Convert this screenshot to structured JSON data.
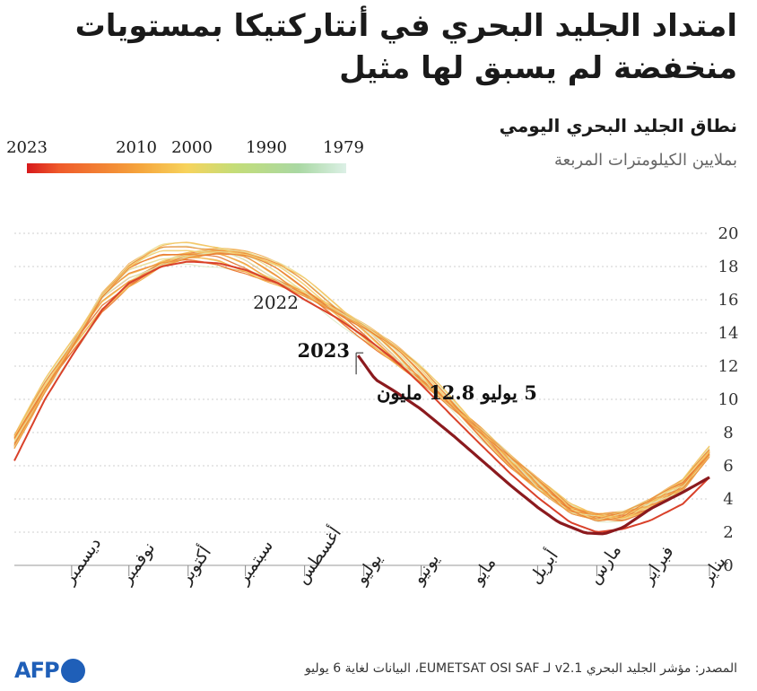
{
  "title": "امتداد الجليد البحري في أنتاركتيكا بمستويات منخفضة لم يسبق لها مثيل",
  "subtitle": "نطاق الجليد البحري اليومي",
  "unit": "بملايين الكيلومترات المربعة",
  "legend_years": [
    "2023",
    "2010",
    "2000",
    "1990",
    "1979"
  ],
  "source": "المصدر: مؤشر الجليد البحري v2.1 لـ EUMETSAT OSI SAF، البيانات لغاية 6 يوليو",
  "logo_text": "AFP",
  "colors": {
    "y2023": "#8b1a1e",
    "y2022": "#d9412a",
    "recent": "#ef7a2b",
    "mid": "#f5c248",
    "old": "#c9dc92"
  },
  "chart_data": {
    "type": "line",
    "x_direction": "right-to-left",
    "months": [
      "يناير",
      "فبراير",
      "مارس",
      "أبريل",
      "مايو",
      "يونيو",
      "يوليو",
      "أغسطس",
      "سبتمبر",
      "أكتوبر",
      "نوفمبر",
      "ديسمبر"
    ],
    "ylim": [
      0,
      20
    ],
    "yticks": [
      0,
      2,
      4,
      6,
      8,
      10,
      12,
      14,
      16,
      18,
      20
    ],
    "climatology": {
      "days": [
        1,
        15,
        32,
        46,
        60,
        74,
        91,
        105,
        121,
        135,
        152,
        166,
        182,
        196,
        213,
        227,
        244,
        258,
        274,
        288,
        305,
        319,
        335,
        349,
        365
      ],
      "values": [
        6.8,
        4.8,
        3.7,
        3.0,
        2.9,
        3.4,
        4.9,
        6.3,
        8.1,
        9.6,
        11.4,
        12.8,
        14.2,
        15.3,
        16.6,
        17.5,
        18.4,
        18.8,
        18.8,
        18.5,
        17.5,
        16.0,
        13.2,
        10.7,
        7.4
      ]
    },
    "series": [
      {
        "name": "2022",
        "days": [
          1,
          15,
          32,
          46,
          60,
          74,
          91,
          105,
          121,
          135,
          152,
          166,
          182,
          196,
          213,
          227,
          244,
          258,
          274,
          288,
          305,
          319,
          335,
          349,
          365
        ],
        "values": [
          5.3,
          3.7,
          2.7,
          2.2,
          2.0,
          2.6,
          4.1,
          5.5,
          7.3,
          8.9,
          10.9,
          12.4,
          13.8,
          14.9,
          16.0,
          17.0,
          17.8,
          18.2,
          18.3,
          18.0,
          17.0,
          15.4,
          12.6,
          10.0,
          6.3
        ]
      },
      {
        "name": "2023",
        "days": [
          1,
          15,
          32,
          46,
          56,
          66,
          80,
          91,
          105,
          121,
          135,
          152,
          166,
          176,
          186
        ],
        "values": [
          5.3,
          4.4,
          3.4,
          2.3,
          1.9,
          1.95,
          2.6,
          3.5,
          4.8,
          6.4,
          7.8,
          9.4,
          10.5,
          11.2,
          12.8
        ]
      }
    ],
    "annotations": [
      {
        "label": "2022"
      },
      {
        "label": "2023"
      },
      {
        "label": "5 يوليو 12.8 مليون"
      }
    ]
  }
}
